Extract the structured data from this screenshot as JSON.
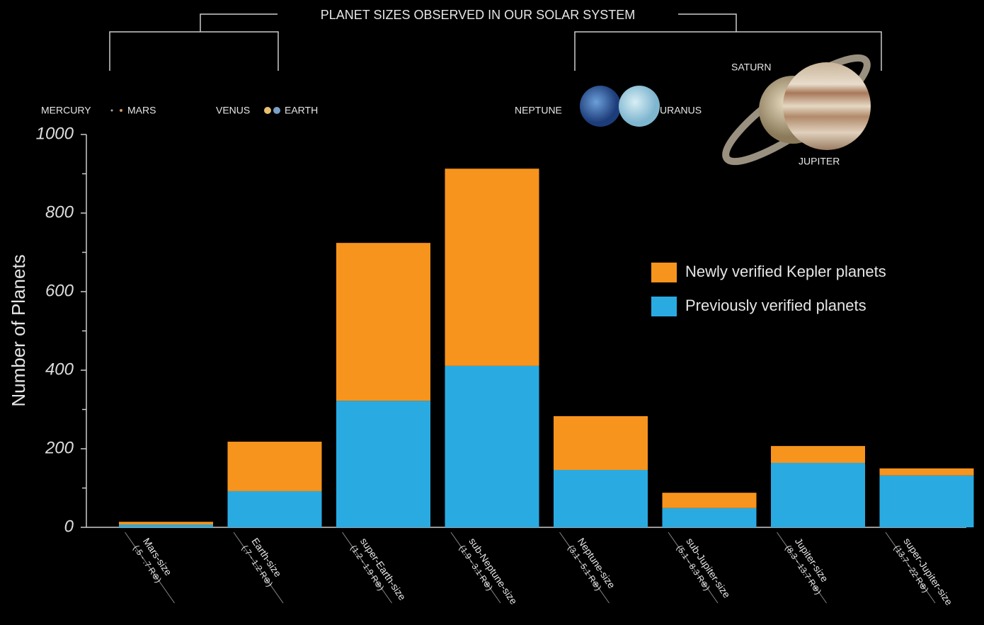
{
  "chart_data": {
    "type": "stacked_bar",
    "ylabel": "Number of Planets",
    "categories": [
      "Mars-size",
      "Earth-size",
      "super-Earth-size",
      "sub-Neptune-size",
      "Neptune-size",
      "sub-Jupiter-size",
      "Jupiter-size",
      "super-Jupiter-size"
    ],
    "category_ranges": [
      "(.5 - .7 R⊕)",
      "(.7 - 1.2 R⊕)",
      "(1.2 - 1.9 R⊕)",
      "(1.9 - 3.1 R⊕)",
      "(3.1 - 5.1 R⊕)",
      "(5.1 - 8.3 R⊕)",
      "(8.3 - 13.7 R⊕)",
      "(13.7 - 22 R⊕)"
    ],
    "series": [
      {
        "name": "Previously verified planets",
        "color": "#29abe2",
        "values": [
          7,
          92,
          322,
          411,
          146,
          49,
          164,
          132
        ]
      },
      {
        "name": "Newly verified Kepler planets",
        "color": "#f7941d",
        "values": [
          7,
          126,
          402,
          502,
          137,
          39,
          43,
          18
        ]
      }
    ],
    "ylim": [
      0,
      1000
    ],
    "yticks": [
      0,
      200,
      400,
      600,
      800,
      1000
    ],
    "minor_yticks": [
      100,
      300,
      500,
      700,
      900
    ],
    "annotations": {
      "title": "PLANET SIZES OBSERVED IN OUR SOLAR SYSTEM",
      "mercury": "MERCURY",
      "mars": "MARS",
      "venus": "VENUS",
      "earth": "EARTH",
      "neptune": "NEPTUNE",
      "uranus": "URANUS",
      "saturn": "SATURN",
      "jupiter": "JUPITER"
    }
  }
}
